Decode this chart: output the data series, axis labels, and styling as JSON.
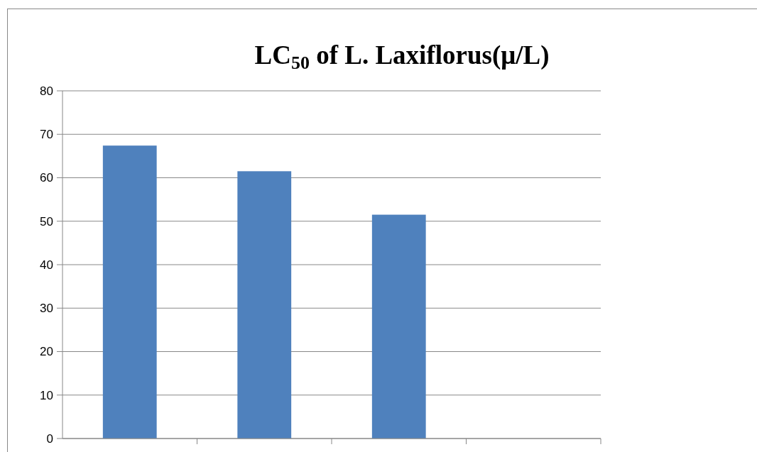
{
  "chart_data": {
    "type": "bar",
    "title": "LC$_{50}$ of L. Laxiflorus(μ/L)",
    "categories": [
      null,
      null,
      null,
      null
    ],
    "values": [
      67.4,
      61.5,
      51.5,
      null
    ],
    "color": "#4f81bd",
    "ylim": [
      0,
      80
    ],
    "yticks": [
      0,
      10,
      20,
      30,
      40,
      50,
      60,
      70,
      80
    ],
    "grid": "y"
  }
}
